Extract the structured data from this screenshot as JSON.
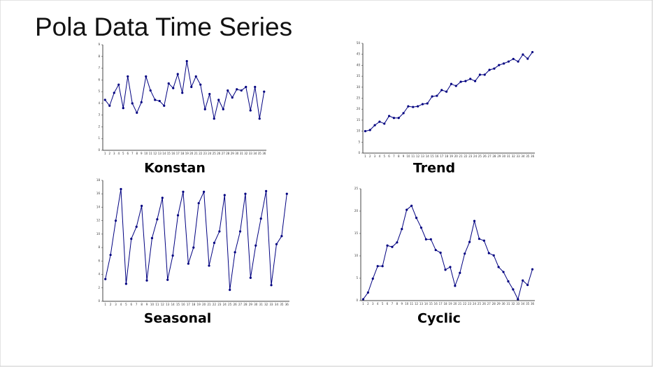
{
  "title": "Pola Data Time Series",
  "chart_data": [
    {
      "type": "line",
      "title": "Konstan",
      "color": "#000080",
      "categories": [
        "1",
        "2",
        "3",
        "4",
        "5",
        "6",
        "7",
        "8",
        "9",
        "10",
        "11",
        "12",
        "13",
        "14",
        "15",
        "16",
        "17",
        "18",
        "19",
        "20",
        "21",
        "22",
        "23",
        "24",
        "25",
        "26",
        "27",
        "28",
        "29",
        "30",
        "31",
        "32",
        "33",
        "34",
        "35",
        "36"
      ],
      "values": [
        4.3,
        3.8,
        4.9,
        5.6,
        3.6,
        6.3,
        4.0,
        3.2,
        4.1,
        6.3,
        5.1,
        4.3,
        4.2,
        3.8,
        5.7,
        5.3,
        6.5,
        4.9,
        7.6,
        5.4,
        6.3,
        5.6,
        3.5,
        4.8,
        2.7,
        4.3,
        3.5,
        5.1,
        4.5,
        5.2,
        5.1,
        5.4,
        3.4,
        5.4,
        2.7,
        5.0
      ],
      "ylim": [
        0,
        9
      ],
      "yticks": [
        0,
        1,
        2,
        3,
        4,
        5,
        6,
        7,
        8,
        9
      ]
    },
    {
      "type": "line",
      "title": "Trend",
      "color": "#000080",
      "categories": [
        "1",
        "2",
        "3",
        "4",
        "5",
        "6",
        "7",
        "8",
        "9",
        "10",
        "11",
        "12",
        "13",
        "14",
        "15",
        "16",
        "17",
        "18",
        "19",
        "20",
        "21",
        "22",
        "23",
        "24",
        "25",
        "26",
        "27",
        "28",
        "29",
        "30",
        "31",
        "32",
        "33",
        "34",
        "35",
        "36"
      ],
      "values": [
        10,
        10.5,
        12.7,
        14.3,
        13.4,
        16.9,
        16,
        16,
        18.2,
        21.3,
        21,
        21.3,
        22.3,
        22.6,
        25.8,
        26.1,
        28.7,
        28,
        31.5,
        30.6,
        32.5,
        32.8,
        33.8,
        32.8,
        35.7,
        35.7,
        37.9,
        38.5,
        40.1,
        40.8,
        41.7,
        42.9,
        41.7,
        44.9,
        43,
        46
      ],
      "ylim": [
        0,
        50
      ],
      "yticks": [
        0,
        5,
        10,
        15,
        20,
        25,
        30,
        35,
        40,
        45,
        50
      ]
    },
    {
      "type": "line",
      "title": "Seasonal",
      "color": "#000080",
      "categories": [
        "1",
        "2",
        "3",
        "4",
        "5",
        "6",
        "7",
        "8",
        "9",
        "10",
        "11",
        "12",
        "13",
        "14",
        "15",
        "16",
        "17",
        "18",
        "19",
        "20",
        "21",
        "22",
        "23",
        "24",
        "25",
        "26",
        "27",
        "28",
        "29",
        "30",
        "31",
        "32",
        "33",
        "34",
        "35",
        "36"
      ],
      "values": [
        3.3,
        6.9,
        12,
        16.7,
        2.6,
        9.3,
        11.1,
        14.2,
        3.1,
        9.4,
        12.2,
        15.4,
        3.2,
        6.8,
        12.8,
        16.3,
        5.6,
        8,
        14.6,
        16.3,
        5.3,
        8.7,
        10.4,
        15.8,
        1.7,
        7.3,
        10.4,
        16,
        3.5,
        8.3,
        12.3,
        16.4,
        2.4,
        8.5,
        9.7,
        16
      ],
      "ylim": [
        0,
        18
      ],
      "yticks": [
        0,
        2,
        4,
        6,
        8,
        10,
        12,
        14,
        16,
        18
      ]
    },
    {
      "type": "line",
      "title": "Cyclic",
      "color": "#000080",
      "categories": [
        "1",
        "2",
        "3",
        "4",
        "5",
        "6",
        "7",
        "8",
        "9",
        "10",
        "11",
        "12",
        "13",
        "14",
        "15",
        "16",
        "17",
        "18",
        "19",
        "20",
        "21",
        "22",
        "23",
        "24",
        "25",
        "26",
        "27",
        "28",
        "29",
        "30",
        "31",
        "32",
        "33",
        "34",
        "35",
        "36"
      ],
      "values": [
        0.3,
        1.8,
        4.9,
        7.7,
        7.7,
        12.3,
        12,
        13,
        16,
        20.3,
        21.2,
        18.5,
        16.3,
        13.7,
        13.7,
        11.3,
        10.7,
        6.9,
        7.5,
        3.3,
        6.2,
        10.5,
        13.1,
        17.8,
        13.8,
        13.4,
        10.6,
        10.1,
        7.5,
        6.4,
        4.3,
        2.5,
        0.3,
        4.5,
        3.5,
        7.0
      ],
      "ylim": [
        0,
        25
      ],
      "yticks": [
        0,
        5,
        10,
        15,
        20,
        25
      ]
    }
  ]
}
